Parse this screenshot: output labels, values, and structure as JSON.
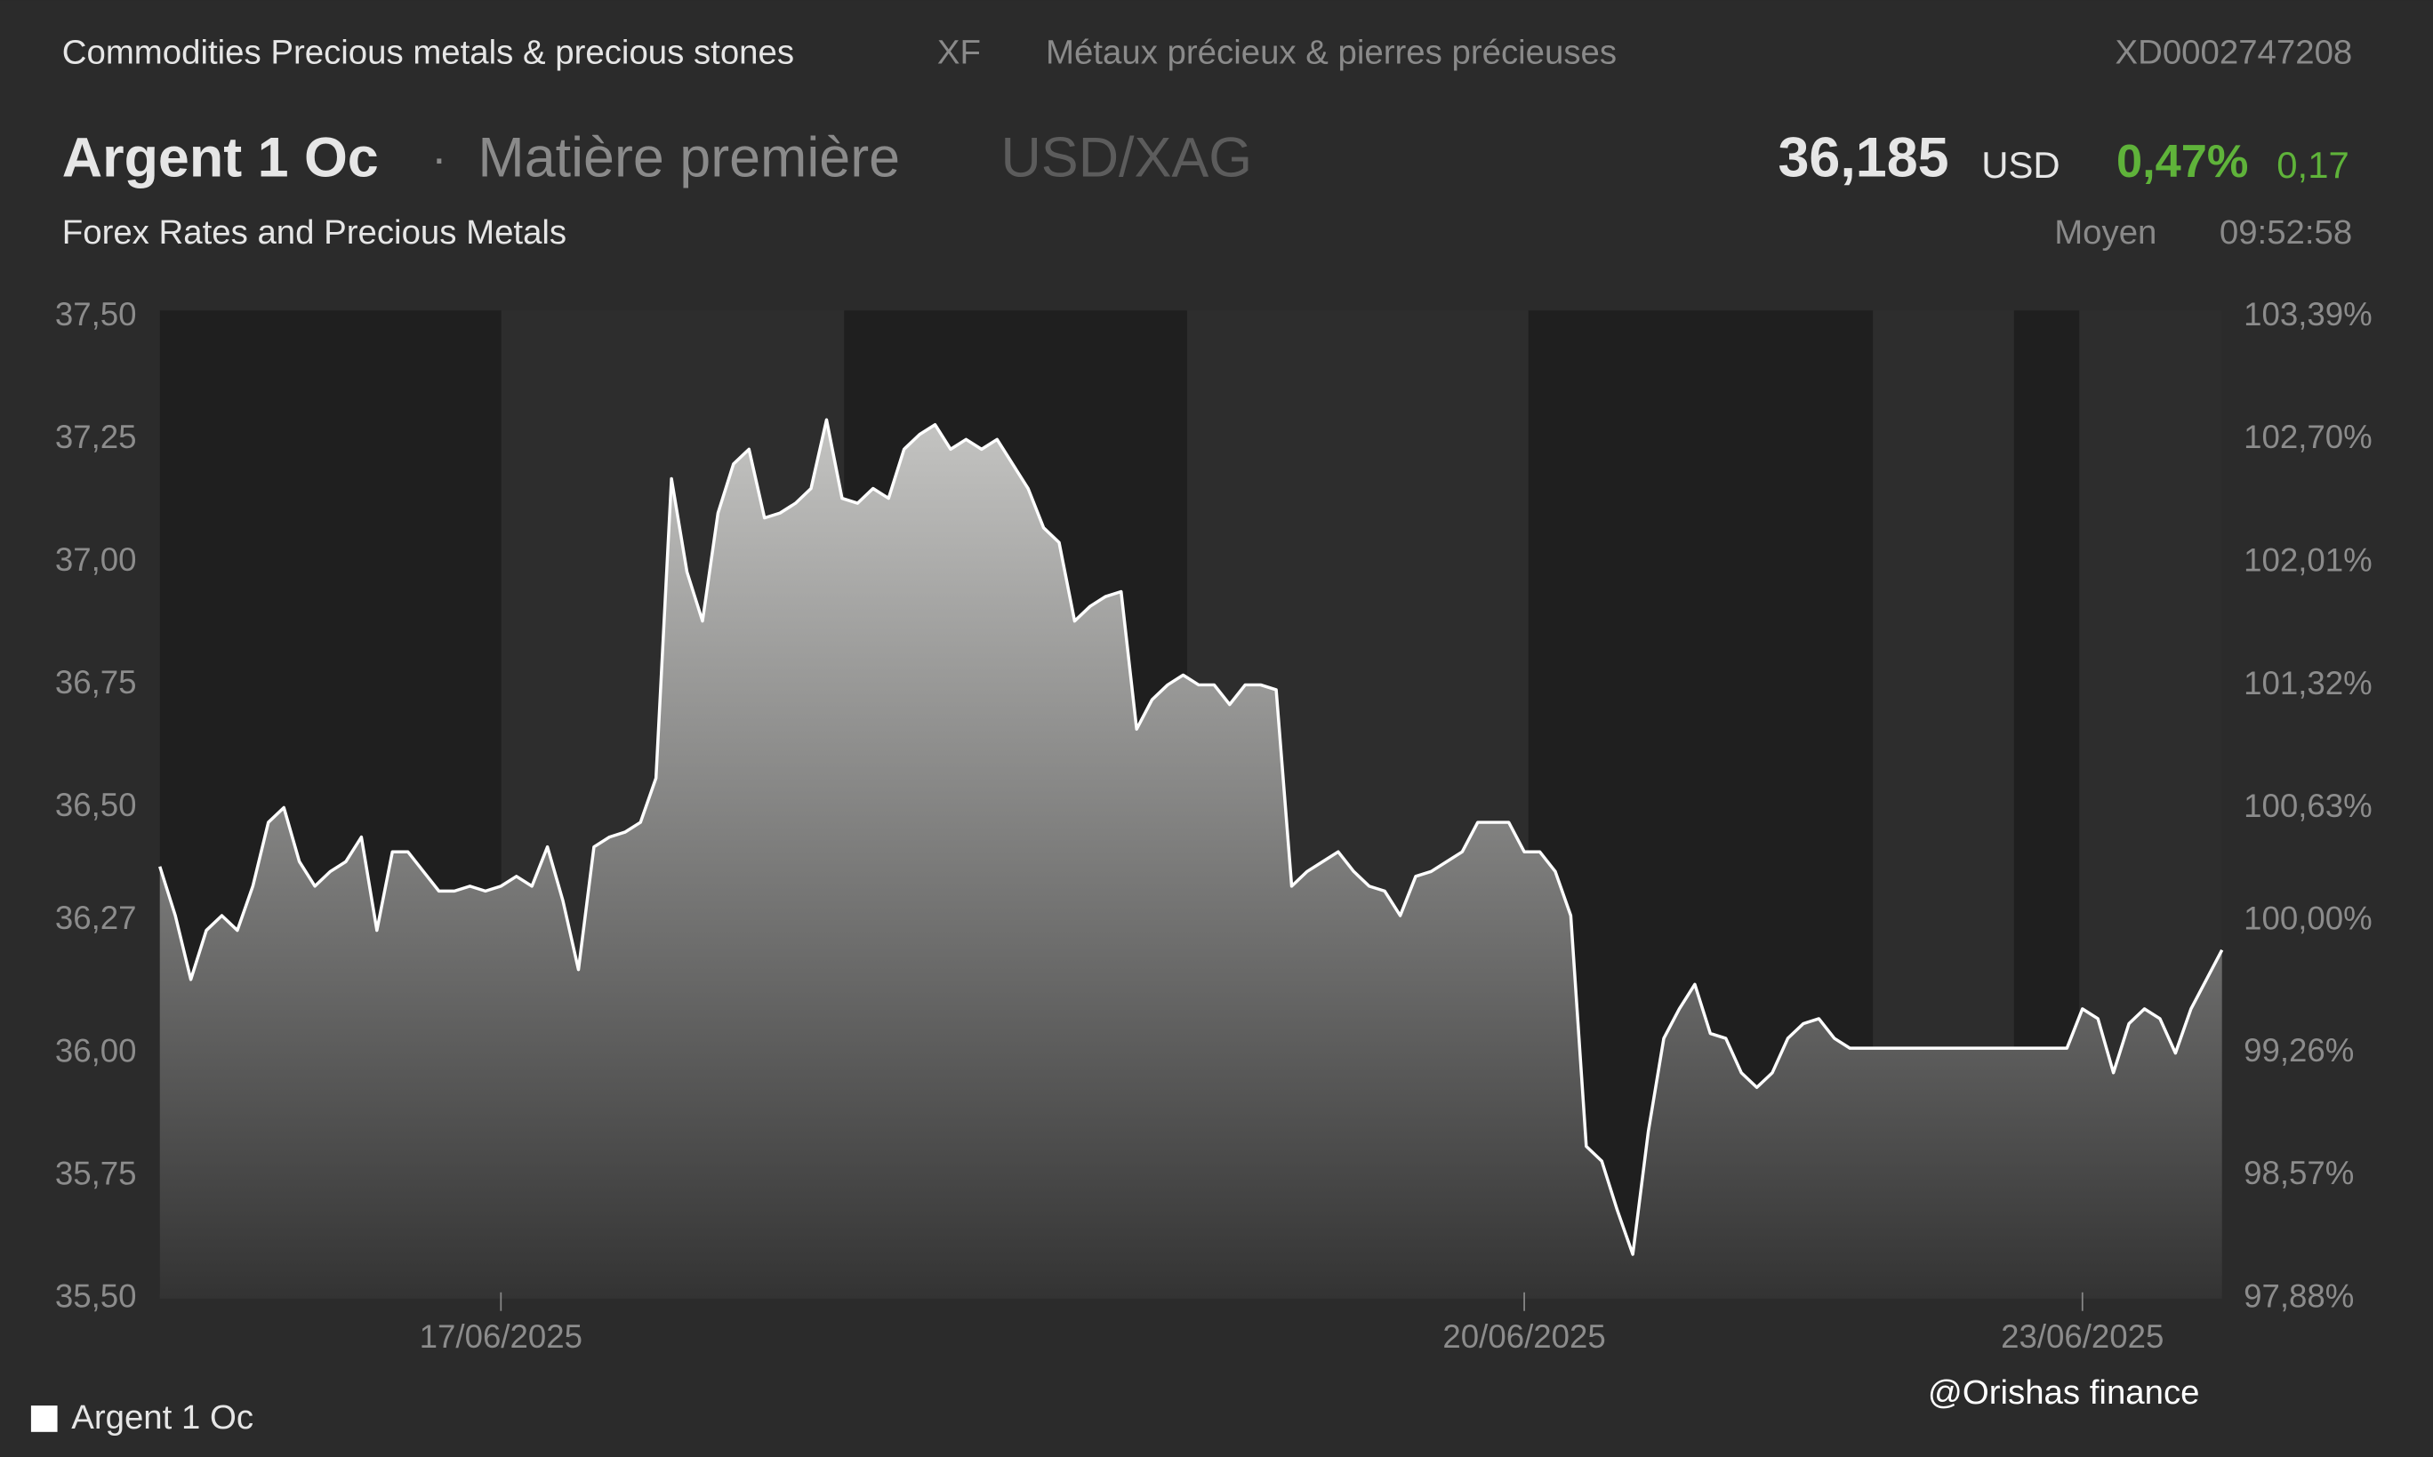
{
  "header": {
    "breadcrumb": "Commodities Precious metals & precious stones",
    "exchange": "XF",
    "category_fr": "Métaux précieux & pierres précieuses",
    "isin": "XD0002747208",
    "name": "Argent 1 Oc",
    "separator": "·",
    "asset_type": "Matière première",
    "pair": "USD/XAG",
    "price": "36,185",
    "currency": "USD",
    "change_pct": "0,47%",
    "change": "0,17",
    "subtitle": "Forex Rates and Precious Metals",
    "price_type": "Moyen",
    "time": "09:52:58"
  },
  "chart_data": {
    "type": "area",
    "categories": [
      null,
      null,
      null,
      null,
      null,
      null,
      null,
      null,
      null,
      null,
      null,
      null,
      null,
      null,
      null,
      null,
      null,
      null,
      null,
      null,
      null,
      null,
      "17/06/2025",
      null,
      null,
      null,
      null,
      null,
      null,
      null,
      null,
      null,
      null,
      null,
      null,
      null,
      null,
      null,
      null,
      null,
      null,
      null,
      null,
      null,
      null,
      null,
      null,
      null,
      null,
      null,
      null,
      null,
      null,
      null,
      null,
      null,
      null,
      null,
      null,
      null,
      null,
      null,
      null,
      null,
      null,
      null,
      null,
      null,
      null,
      null,
      null,
      null,
      null,
      null,
      null,
      null,
      null,
      null,
      null,
      null,
      null,
      null,
      null,
      null,
      null,
      null,
      null,
      null,
      "20/06/2025",
      null,
      null,
      null,
      null,
      null,
      null,
      null,
      null,
      null,
      null,
      null,
      null,
      null,
      null,
      null,
      null,
      null,
      null,
      null,
      null,
      null,
      null,
      null,
      null,
      null,
      null,
      null,
      null,
      null,
      null,
      null,
      null,
      null,
      null,
      null,
      "23/06/2025",
      null,
      null,
      null,
      null,
      null,
      null,
      null,
      null,
      null
    ],
    "series": [
      {
        "name": "Argent 1 Oc",
        "color": "#ffffff",
        "values": [
          36.38,
          36.28,
          36.15,
          36.25,
          36.28,
          36.25,
          36.34,
          36.47,
          36.5,
          36.39,
          36.34,
          36.37,
          36.39,
          36.44,
          36.25,
          36.41,
          36.41,
          36.37,
          36.33,
          36.33,
          36.34,
          36.33,
          36.34,
          36.36,
          36.34,
          36.42,
          36.31,
          36.17,
          36.42,
          36.44,
          36.45,
          36.47,
          36.56,
          37.17,
          36.98,
          36.88,
          37.1,
          37.2,
          37.23,
          37.09,
          37.1,
          37.12,
          37.15,
          37.29,
          37.13,
          37.12,
          37.15,
          37.13,
          37.23,
          37.26,
          37.28,
          37.23,
          37.25,
          37.23,
          37.25,
          37.2,
          37.15,
          37.07,
          37.04,
          36.88,
          36.91,
          36.93,
          36.94,
          36.66,
          36.72,
          36.75,
          36.77,
          36.75,
          36.75,
          36.71,
          36.75,
          36.75,
          36.74,
          36.34,
          36.37,
          36.39,
          36.41,
          36.37,
          36.34,
          36.33,
          36.28,
          36.36,
          36.37,
          36.39,
          36.41,
          36.47,
          36.47,
          36.47,
          36.41,
          36.41,
          36.37,
          36.28,
          35.81,
          35.78,
          35.68,
          35.59,
          35.84,
          36.03,
          36.09,
          36.14,
          36.04,
          36.03,
          35.96,
          35.93,
          35.96,
          36.03,
          36.06,
          36.07,
          36.03,
          36.01,
          36.01,
          36.01,
          36.01,
          36.01,
          36.01,
          36.01,
          36.01,
          36.01,
          36.01,
          36.01,
          36.01,
          36.01,
          36.01,
          36.01,
          36.09,
          36.07,
          35.96,
          36.06,
          36.09,
          36.07,
          36.0,
          36.09,
          36.15,
          36.21
        ]
      }
    ],
    "ylim": [
      35.5,
      37.5
    ],
    "yticks": [
      {
        "value": 35.5,
        "label": "35,50"
      },
      {
        "value": 35.75,
        "label": "35,75"
      },
      {
        "value": 36,
        "label": "36,00"
      },
      {
        "value": 36.27,
        "label": "36,27"
      },
      {
        "value": 36.5,
        "label": "36,50"
      },
      {
        "value": 36.75,
        "label": "36,75"
      },
      {
        "value": 37,
        "label": "37,00"
      },
      {
        "value": 37.25,
        "label": "37,25"
      },
      {
        "value": 37.5,
        "label": "37,50"
      }
    ],
    "y2lim": [
      97.88,
      103.39
    ],
    "y2ticks": [
      {
        "value": 97.88,
        "label": "97,88%"
      },
      {
        "value": 98.57,
        "label": "98,57%"
      },
      {
        "value": 99.26,
        "label": "99,26%"
      },
      {
        "value": 100,
        "label": "100,00%"
      },
      {
        "value": 100.63,
        "label": "100,63%"
      },
      {
        "value": 101.32,
        "label": "101,32%"
      },
      {
        "value": 102.01,
        "label": "102,01%"
      },
      {
        "value": 102.7,
        "label": "102,70%"
      },
      {
        "value": 103.39,
        "label": "103,39%"
      }
    ],
    "grid": false,
    "legend": "bottom-left"
  },
  "watermark": "@Orishas finance"
}
